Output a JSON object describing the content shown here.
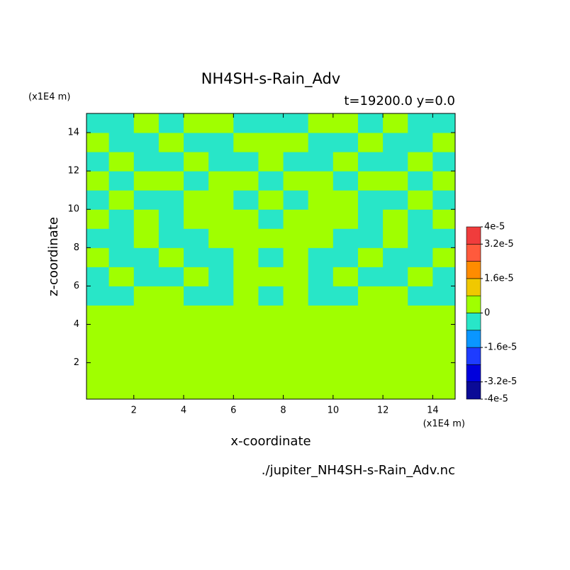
{
  "chart_data": {
    "type": "contour",
    "title": "NH4SH-s-Rain_Adv",
    "subtitle": "t=19200.0 y=0.0",
    "x_label": "x-coordinate",
    "y_label": "z-coordinate",
    "x_unit": "(x1E4 m)",
    "y_unit": "(x1E4 m)",
    "footer": "./jupiter_NH4SH-s-Rain_Adv.nc",
    "xlim": [
      0.1,
      14.9
    ],
    "ylim": [
      0.1,
      15
    ],
    "xticks": [
      2,
      4,
      6,
      8,
      10,
      12,
      14
    ],
    "yticks": [
      2,
      4,
      6,
      8,
      10,
      12,
      14
    ],
    "x": [
      0.5,
      1.5,
      2.5,
      3.5,
      4.5,
      5.5,
      6.5,
      7.5,
      8.5,
      9.5,
      10.5,
      11.5,
      12.5,
      13.5,
      14.5
    ],
    "y": [
      0.5,
      1.5,
      2.5,
      3.5,
      4.5,
      5.5,
      6.5,
      7.5,
      8.5,
      9.5,
      10.5,
      11.5,
      12.5,
      13.5,
      14.5
    ],
    "z": [
      [
        4e-06,
        4e-06,
        4e-06,
        4e-06,
        4e-06,
        4e-06,
        4e-06,
        4e-06,
        4e-06,
        4e-06,
        4e-06,
        4e-06,
        4e-06,
        4e-06,
        4e-06
      ],
      [
        4e-06,
        4e-06,
        4e-06,
        4e-06,
        4e-06,
        4e-06,
        4e-06,
        4e-06,
        4e-06,
        4e-06,
        4e-06,
        4e-06,
        4e-06,
        4e-06,
        4e-06
      ],
      [
        4e-06,
        4e-06,
        4e-06,
        4e-06,
        4e-06,
        4e-06,
        4e-06,
        4e-06,
        4e-06,
        4e-06,
        4e-06,
        4e-06,
        4e-06,
        4e-06,
        4e-06
      ],
      [
        4e-06,
        4e-06,
        4e-06,
        4e-06,
        4e-06,
        4e-06,
        4e-06,
        4e-06,
        4e-06,
        4e-06,
        4e-06,
        4e-06,
        4e-06,
        4e-06,
        4e-06
      ],
      [
        4e-06,
        4e-06,
        4e-06,
        4e-06,
        4e-06,
        4e-06,
        4e-06,
        4e-06,
        4e-06,
        4e-06,
        4e-06,
        4e-06,
        4e-06,
        4e-06,
        4e-06
      ],
      [
        -4e-06,
        -4e-06,
        4e-06,
        4e-06,
        -4e-06,
        -4e-06,
        4e-06,
        -4e-06,
        4e-06,
        -4e-06,
        -4e-06,
        4e-06,
        4e-06,
        -4e-06,
        -4e-06
      ],
      [
        -4e-06,
        4e-06,
        -4e-06,
        -4e-06,
        4e-06,
        -4e-06,
        4e-06,
        4e-06,
        4e-06,
        -4e-06,
        4e-06,
        -4e-06,
        -4e-06,
        4e-06,
        -4e-06
      ],
      [
        4e-06,
        -4e-06,
        -4e-06,
        4e-06,
        -4e-06,
        -4e-06,
        4e-06,
        -4e-06,
        4e-06,
        -4e-06,
        -4e-06,
        4e-06,
        -4e-06,
        -4e-06,
        4e-06
      ],
      [
        -4e-06,
        -4e-06,
        4e-06,
        -4e-06,
        -4e-06,
        4e-06,
        4e-06,
        4e-06,
        4e-06,
        4e-06,
        -4e-06,
        -4e-06,
        4e-06,
        -4e-06,
        -4e-06
      ],
      [
        4e-06,
        -4e-06,
        4e-06,
        -4e-06,
        4e-06,
        4e-06,
        4e-06,
        -4e-06,
        4e-06,
        4e-06,
        4e-06,
        -4e-06,
        4e-06,
        -4e-06,
        4e-06
      ],
      [
        -4e-06,
        4e-06,
        -4e-06,
        -4e-06,
        4e-06,
        4e-06,
        -4e-06,
        4e-06,
        -4e-06,
        4e-06,
        4e-06,
        -4e-06,
        -4e-06,
        4e-06,
        -4e-06
      ],
      [
        4e-06,
        -4e-06,
        4e-06,
        4e-06,
        -4e-06,
        4e-06,
        4e-06,
        -4e-06,
        4e-06,
        4e-06,
        -4e-06,
        4e-06,
        4e-06,
        -4e-06,
        4e-06
      ],
      [
        -4e-06,
        4e-06,
        -4e-06,
        -4e-06,
        4e-06,
        -4e-06,
        -4e-06,
        4e-06,
        -4e-06,
        -4e-06,
        4e-06,
        -4e-06,
        -4e-06,
        4e-06,
        -4e-06
      ],
      [
        4e-06,
        -4e-06,
        -4e-06,
        4e-06,
        -4e-06,
        -4e-06,
        4e-06,
        4e-06,
        4e-06,
        -4e-06,
        -4e-06,
        4e-06,
        -4e-06,
        -4e-06,
        4e-06
      ],
      [
        -4e-06,
        -4e-06,
        4e-06,
        -4e-06,
        4e-06,
        4e-06,
        -4e-06,
        -4e-06,
        -4e-06,
        4e-06,
        4e-06,
        -4e-06,
        4e-06,
        -4e-06,
        -4e-06
      ]
    ],
    "levels": [
      -4e-05,
      -3.2e-05,
      -2.4e-05,
      -1.6e-05,
      -8e-06,
      0,
      8e-06,
      1.6e-05,
      2.4e-05,
      3.2e-05,
      4e-05
    ],
    "colors": [
      "#0a0a96",
      "#0000dc",
      "#1e3cff",
      "#0a96ff",
      "#28e6c8",
      "#a0ff00",
      "#f0c800",
      "#ff8c00",
      "#ff5a3c",
      "#f03c3c"
    ],
    "cticks": [
      {
        "value": 4e-05,
        "label": "4e-5"
      },
      {
        "value": 3.2e-05,
        "label": "3.2e-5"
      },
      {
        "value": 1.6e-05,
        "label": "1.6e-5"
      },
      0,
      {
        "value": -1.6e-05,
        "label": "-1.6e-5"
      },
      {
        "value": -3.2e-05,
        "label": "-3.2e-5"
      },
      {
        "value": -4e-05,
        "label": "-4e-5"
      }
    ]
  }
}
